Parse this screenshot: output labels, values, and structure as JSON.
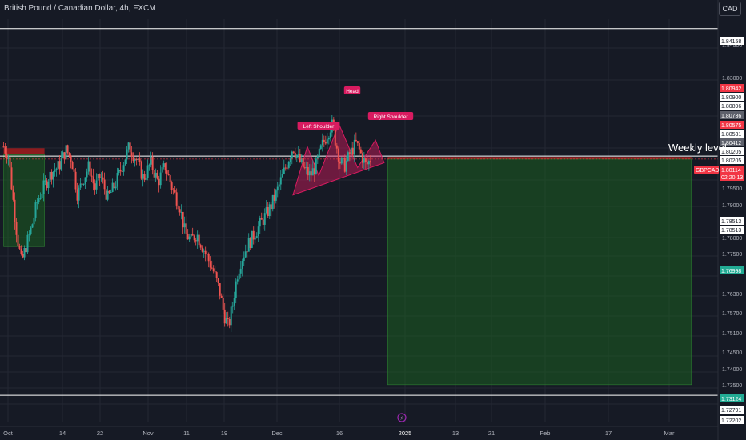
{
  "header": {
    "title": "British Pound / Canadian Dollar, 4h, FXCM",
    "currency_button": "CAD"
  },
  "annotations": {
    "weekly_level": "Weekly level",
    "left_shoulder": "Left Shoulder",
    "head": "Head",
    "right_shoulder": "Right Shoulder"
  },
  "colors": {
    "background": "#161a25",
    "up": "#26a69a",
    "down": "#ef5350",
    "pattern": "#d81b60",
    "zone_green": "#1b5e20",
    "zone_red": "#b71c1c",
    "price_red": "#f23645",
    "price_green": "#089981"
  },
  "chart_data": {
    "type": "candlestick",
    "symbol": "GBPCAD",
    "timeframe": "4h",
    "ylim": [
      1.7195,
      1.8445
    ],
    "y_ticks": [
      "1.84500",
      "1.83000",
      "1.79500",
      "1.79000",
      "1.78000",
      "1.77500",
      "1.76300",
      "1.75700",
      "1.75100",
      "1.74500",
      "1.74000",
      "1.73500"
    ],
    "x_ticks": [
      "Oct",
      "14",
      "22",
      "Nov",
      "11",
      "19",
      "Dec",
      "16",
      "2025",
      "13",
      "21",
      "Feb",
      "17",
      "Mar"
    ],
    "price_labels": [
      {
        "value": "1.84158",
        "style": "white"
      },
      {
        "value": "1.80942",
        "style": "red"
      },
      {
        "value": "1.80900",
        "style": "white"
      },
      {
        "value": "1.80896",
        "style": "white"
      },
      {
        "value": "1.80736",
        "style": "gray"
      },
      {
        "value": "1.80575",
        "style": "red"
      },
      {
        "value": "1.80531",
        "style": "white"
      },
      {
        "value": "1.80412",
        "style": "gray"
      },
      {
        "value": "1.80205",
        "style": "white"
      },
      {
        "value": "1.80205",
        "style": "white"
      },
      {
        "value": "1.80114",
        "style": "red"
      },
      {
        "value": "02:20:13",
        "style": "red"
      },
      {
        "value": "1.78513",
        "style": "white"
      },
      {
        "value": "1.78513",
        "style": "white"
      },
      {
        "value": "1.76998",
        "style": "green"
      },
      {
        "value": "1.73124",
        "style": "green"
      },
      {
        "value": "1.72791",
        "style": "white"
      },
      {
        "value": "1.72202",
        "style": "white"
      }
    ],
    "symbol_tag": "GBPCAD",
    "horizontal_lines": [
      1.84158,
      1.80205,
      1.72791
    ],
    "price_path": [
      [
        0.005,
        1.805
      ],
      [
        0.012,
        1.802
      ],
      [
        0.018,
        1.789
      ],
      [
        0.024,
        1.777
      ],
      [
        0.03,
        1.769
      ],
      [
        0.036,
        1.774
      ],
      [
        0.044,
        1.78
      ],
      [
        0.052,
        1.788
      ],
      [
        0.062,
        1.793
      ],
      [
        0.072,
        1.797
      ],
      [
        0.082,
        1.799
      ],
      [
        0.092,
        1.804
      ],
      [
        0.1,
        1.801
      ],
      [
        0.108,
        1.79
      ],
      [
        0.116,
        1.795
      ],
      [
        0.124,
        1.799
      ],
      [
        0.132,
        1.792
      ],
      [
        0.14,
        1.796
      ],
      [
        0.15,
        1.789
      ],
      [
        0.16,
        1.793
      ],
      [
        0.17,
        1.799
      ],
      [
        0.18,
        1.805
      ],
      [
        0.19,
        1.801
      ],
      [
        0.2,
        1.795
      ],
      [
        0.21,
        1.8
      ],
      [
        0.22,
        1.794
      ],
      [
        0.23,
        1.799
      ],
      [
        0.24,
        1.792
      ],
      [
        0.25,
        1.787
      ],
      [
        0.258,
        1.778
      ],
      [
        0.266,
        1.776
      ],
      [
        0.274,
        1.778
      ],
      [
        0.282,
        1.774
      ],
      [
        0.29,
        1.77
      ],
      [
        0.298,
        1.766
      ],
      [
        0.306,
        1.76
      ],
      [
        0.312,
        1.753
      ],
      [
        0.318,
        1.749
      ],
      [
        0.324,
        1.756
      ],
      [
        0.33,
        1.765
      ],
      [
        0.336,
        1.77
      ],
      [
        0.344,
        1.774
      ],
      [
        0.352,
        1.777
      ],
      [
        0.36,
        1.78
      ],
      [
        0.368,
        1.783
      ],
      [
        0.376,
        1.786
      ],
      [
        0.384,
        1.79
      ],
      [
        0.392,
        1.795
      ],
      [
        0.4,
        1.8
      ],
      [
        0.408,
        1.805
      ],
      [
        0.416,
        1.801
      ],
      [
        0.424,
        1.798
      ],
      [
        0.432,
        1.796
      ],
      [
        0.44,
        1.799
      ],
      [
        0.448,
        1.805
      ],
      [
        0.456,
        1.809
      ],
      [
        0.462,
        1.812
      ],
      [
        0.468,
        1.806
      ],
      [
        0.474,
        1.8
      ],
      [
        0.48,
        1.799
      ],
      [
        0.488,
        1.803
      ],
      [
        0.496,
        1.806
      ],
      [
        0.504,
        1.802
      ],
      [
        0.51,
        1.799
      ],
      [
        0.516,
        1.801
      ]
    ],
    "pattern": {
      "neckline": [
        [
          0.408,
          1.79
        ],
        [
          0.535,
          1.8
        ]
      ],
      "shoulder_left_peak": [
        0.428,
        1.805
      ],
      "head_peak": [
        0.472,
        1.812
      ],
      "shoulder_right_peak": [
        0.523,
        1.807
      ]
    },
    "zones": [
      {
        "kind": "red",
        "x": [
          0.005,
          0.062
        ],
        "y": [
          1.8025,
          1.8045
        ]
      },
      {
        "kind": "green",
        "x": [
          0.005,
          0.062
        ],
        "y": [
          1.774,
          1.8025
        ]
      },
      {
        "kind": "red",
        "x": [
          0.54,
          0.963
        ],
        "y": [
          1.8011,
          1.8018
        ]
      },
      {
        "kind": "green",
        "x": [
          0.54,
          0.963
        ],
        "y": [
          1.7312,
          1.8011
        ]
      }
    ],
    "current_price": 1.80114
  }
}
